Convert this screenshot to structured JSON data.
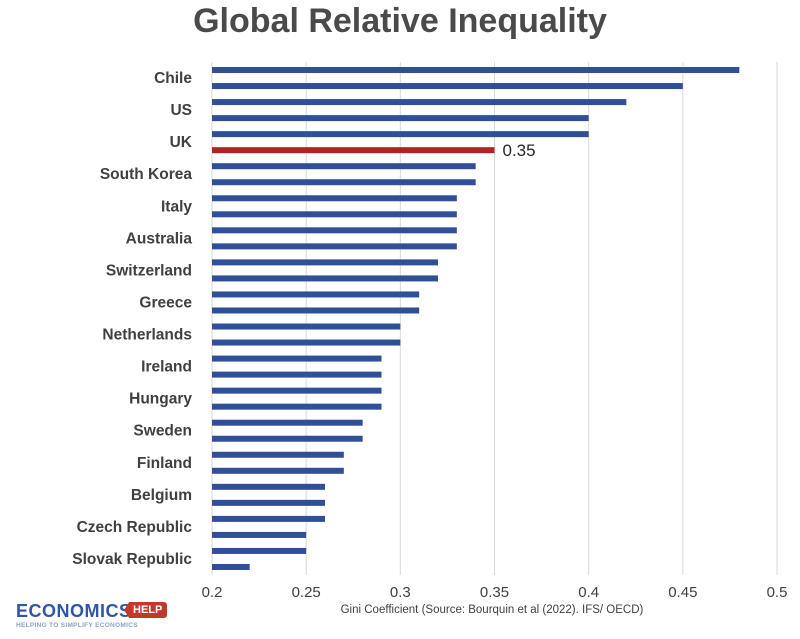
{
  "chart_data": {
    "type": "bar",
    "orientation": "horizontal",
    "title": "Global Relative Inequality",
    "xlabel": "Gini Coefficient (Source: Bourquin et al (2022). IFS/ OECD)",
    "xlim": [
      0.2,
      0.5
    ],
    "xticks": [
      "0.2",
      "0.25",
      "0.3",
      "0.35",
      "0.4",
      "0.45",
      "0.5"
    ],
    "grid": "vertical",
    "bar_color": "#2f4f96",
    "highlight_color": "#b22222",
    "highlight_label": "0.35",
    "bars": [
      {
        "label": "",
        "value": 0.48
      },
      {
        "label": "Chile",
        "value": 0.45
      },
      {
        "label": "",
        "value": 0.42
      },
      {
        "label": "US",
        "value": 0.4
      },
      {
        "label": "",
        "value": 0.4
      },
      {
        "label": "UK",
        "value": 0.35,
        "highlight": true
      },
      {
        "label": "",
        "value": 0.34
      },
      {
        "label": "South Korea",
        "value": 0.34
      },
      {
        "label": "",
        "value": 0.33
      },
      {
        "label": "Italy",
        "value": 0.33
      },
      {
        "label": "",
        "value": 0.33
      },
      {
        "label": "Australia",
        "value": 0.33
      },
      {
        "label": "",
        "value": 0.32
      },
      {
        "label": "Switzerland",
        "value": 0.32
      },
      {
        "label": "",
        "value": 0.31
      },
      {
        "label": "Greece",
        "value": 0.31
      },
      {
        "label": "",
        "value": 0.3
      },
      {
        "label": "Netherlands",
        "value": 0.3
      },
      {
        "label": "",
        "value": 0.29
      },
      {
        "label": "Ireland",
        "value": 0.29
      },
      {
        "label": "",
        "value": 0.29
      },
      {
        "label": "Hungary",
        "value": 0.29
      },
      {
        "label": "",
        "value": 0.28
      },
      {
        "label": "Sweden",
        "value": 0.28
      },
      {
        "label": "",
        "value": 0.27
      },
      {
        "label": "Finland",
        "value": 0.27
      },
      {
        "label": "",
        "value": 0.26
      },
      {
        "label": "Belgium",
        "value": 0.26
      },
      {
        "label": "",
        "value": 0.26
      },
      {
        "label": "Czech Republic",
        "value": 0.25
      },
      {
        "label": "",
        "value": 0.25
      },
      {
        "label": "Slovak Republic",
        "value": 0.22
      }
    ]
  },
  "logo": {
    "main": "ECONOMICS",
    "badge": "HELP",
    "tagline": "HELPING TO SIMPLIFY ECONOMICS"
  }
}
